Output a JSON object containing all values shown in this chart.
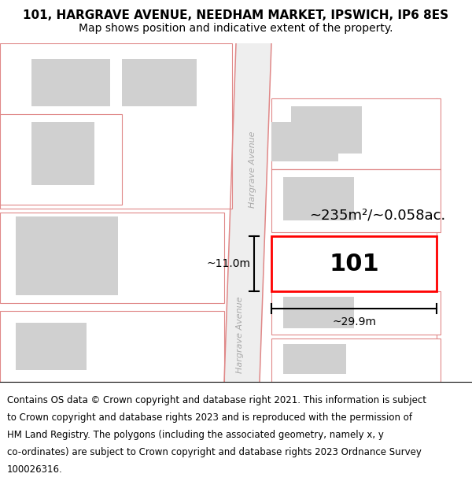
{
  "title_line1": "101, HARGRAVE AVENUE, NEEDHAM MARKET, IPSWICH, IP6 8ES",
  "title_line2": "Map shows position and indicative extent of the property.",
  "footer_lines": [
    "Contains OS data © Crown copyright and database right 2021. This information is subject",
    "to Crown copyright and database rights 2023 and is reproduced with the permission of",
    "HM Land Registry. The polygons (including the associated geometry, namely x, y",
    "co-ordinates) are subject to Crown copyright and database rights 2023 Ordnance Survey",
    "100026316."
  ],
  "bg_color": "#f5f5f5",
  "white": "#ffffff",
  "road_line_color": "#e08888",
  "highlight_color": "#ff0000",
  "building_color": "#d0d0d0",
  "dim_line_color": "#000000",
  "label_101": "101",
  "area_label": "~235m²/~0.058ac.",
  "width_label": "~29.9m",
  "height_label": "~11.0m",
  "street_label": "Hargrave Avenue"
}
